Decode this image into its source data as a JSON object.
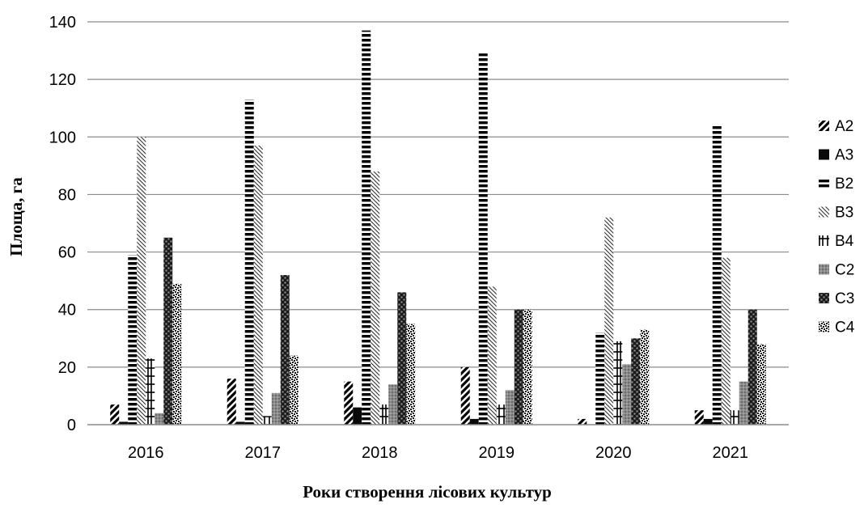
{
  "chart_data": {
    "type": "bar",
    "title": "",
    "xlabel": "Роки створення лісових культур",
    "ylabel": "Площа, га",
    "categories": [
      "2016",
      "2017",
      "2018",
      "2019",
      "2020",
      "2021"
    ],
    "ylim": [
      0,
      140
    ],
    "yticks": [
      "0",
      "20",
      "40",
      "60",
      "80",
      "100",
      "120",
      "140"
    ],
    "grid": true,
    "legend_position": "right",
    "series": [
      {
        "name": "A2",
        "pattern": "diagonal-thick",
        "values": [
          7,
          16,
          15,
          20,
          2,
          5
        ]
      },
      {
        "name": "A3",
        "pattern": "solid-black",
        "values": [
          1,
          1,
          6,
          2,
          0,
          2
        ]
      },
      {
        "name": "B2",
        "pattern": "horizontal-stripes",
        "values": [
          59,
          113,
          137,
          129,
          32,
          104
        ]
      },
      {
        "name": "B3",
        "pattern": "diagonal-thin",
        "values": [
          100,
          97,
          88,
          48,
          72,
          58
        ]
      },
      {
        "name": "B4",
        "pattern": "hash",
        "values": [
          23,
          3,
          7,
          7,
          29,
          5
        ]
      },
      {
        "name": "C2",
        "pattern": "gray-dots",
        "values": [
          4,
          11,
          14,
          12,
          21,
          15
        ]
      },
      {
        "name": "C3",
        "pattern": "dark-checker",
        "values": [
          65,
          52,
          46,
          40,
          30,
          40
        ]
      },
      {
        "name": "C4",
        "pattern": "speckle",
        "values": [
          49,
          24,
          35,
          40,
          33,
          28
        ]
      }
    ]
  }
}
